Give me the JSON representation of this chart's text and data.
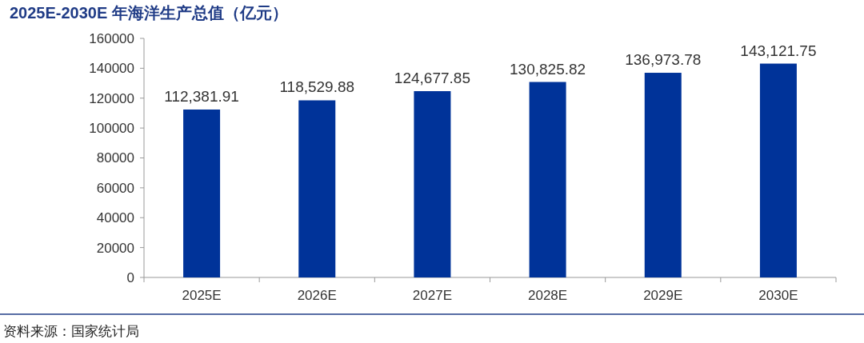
{
  "chart_data": {
    "type": "bar",
    "title": "2025E-2030E 年海洋生产总值（亿元）",
    "categories": [
      "2025E",
      "2026E",
      "2027E",
      "2028E",
      "2029E",
      "2030E"
    ],
    "values": [
      112381.91,
      118529.88,
      124677.85,
      130825.82,
      136973.78,
      143121.75
    ],
    "value_labels": [
      "112,381.91",
      "118,529.88",
      "124,677.85",
      "130,825.82",
      "136,973.78",
      "143,121.75"
    ],
    "color": "#003399",
    "ylim": [
      0,
      160000
    ],
    "yticks": [
      0,
      20000,
      40000,
      60000,
      80000,
      100000,
      120000,
      140000,
      160000
    ],
    "grid": false,
    "annotations": [
      "资料来源：国家统计局"
    ]
  }
}
